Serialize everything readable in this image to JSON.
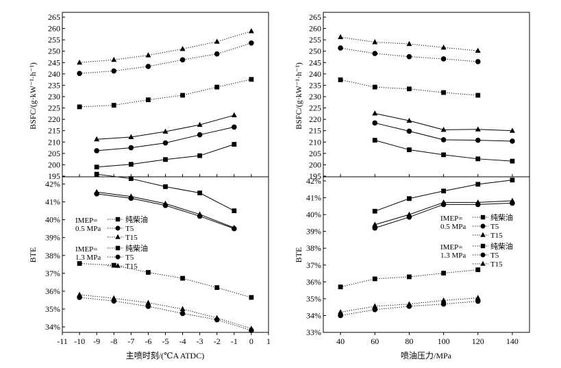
{
  "chart_data": [
    {
      "type": "line",
      "panel": "left-top",
      "xlabel": "主喷时刻/(℃A ATDC)",
      "ylabel": "BSFC/(g·kW⁻¹·h⁻¹)",
      "xlim": [
        -11,
        1
      ],
      "ylim": [
        195,
        265
      ],
      "xticks": [
        -11,
        -10,
        -9,
        -8,
        -7,
        -6,
        -5,
        -4,
        -3,
        -2,
        -1,
        0,
        1
      ],
      "yticks": [
        195,
        200,
        205,
        210,
        215,
        220,
        225,
        230,
        235,
        240,
        245,
        250,
        255,
        260,
        265
      ],
      "series": [
        {
          "name": "纯柴油",
          "load": "0.5 MPa",
          "marker": "square",
          "style": "solid",
          "x": [
            -9,
            -7,
            -5,
            -3,
            -1
          ],
          "y": [
            199,
            200.2,
            202.3,
            204,
            209
          ]
        },
        {
          "name": "T5",
          "load": "0.5 MPa",
          "marker": "circle",
          "style": "solid",
          "x": [
            -9,
            -7,
            -5,
            -3,
            -1
          ],
          "y": [
            206.2,
            207.5,
            209.6,
            213.2,
            216.6
          ]
        },
        {
          "name": "T15",
          "load": "0.5 MPa",
          "marker": "triangle",
          "style": "solid",
          "x": [
            -9,
            -7,
            -5,
            -3,
            -1
          ],
          "y": [
            211.2,
            212.2,
            214.6,
            217.6,
            221.8
          ]
        },
        {
          "name": "纯柴油",
          "load": "1.3 MPa",
          "marker": "square",
          "style": "dotted",
          "x": [
            -10,
            -8,
            -6,
            -4,
            -2,
            0
          ],
          "y": [
            225.5,
            226.2,
            228.6,
            230.6,
            234.2,
            237.6
          ]
        },
        {
          "name": "T5",
          "load": "1.3 MPa",
          "marker": "circle",
          "style": "dotted",
          "x": [
            -10,
            -8,
            -6,
            -4,
            -2,
            0
          ],
          "y": [
            240.2,
            241.3,
            243.3,
            246.2,
            248.8,
            253.6
          ]
        },
        {
          "name": "T15",
          "load": "1.3 MPa",
          "marker": "triangle",
          "style": "dotted",
          "x": [
            -10,
            -8,
            -6,
            -4,
            -2,
            0
          ],
          "y": [
            245,
            246.2,
            248.2,
            251,
            254.2,
            258.8
          ]
        }
      ]
    },
    {
      "type": "line",
      "panel": "left-bottom",
      "xlabel": "主喷时刻/(℃A ATDC)",
      "ylabel": "BTE",
      "xlim": [
        -11,
        1
      ],
      "ylim": [
        33.6,
        42.3
      ],
      "yticks": [
        "34%",
        "35%",
        "36%",
        "37%",
        "38%",
        "39%",
        "40%",
        "41%",
        "42%"
      ],
      "legend": {
        "load1": "IMEP=\n0.5 MPa",
        "load2": "IMEP=\n1.3 MPa",
        "entries": [
          "纯柴油",
          "T5",
          "T15",
          "纯柴油",
          "T5",
          "T15"
        ]
      },
      "series": [
        {
          "name": "纯柴油",
          "load": "0.5 MPa",
          "marker": "square",
          "style": "solid",
          "x": [
            -9,
            -7,
            -5,
            -3,
            -1
          ],
          "y": [
            42.55,
            42.3,
            41.85,
            41.5,
            40.5
          ]
        },
        {
          "name": "T5",
          "load": "0.5 MPa",
          "marker": "circle",
          "style": "solid",
          "x": [
            -9,
            -7,
            -5,
            -3,
            -1
          ],
          "y": [
            41.45,
            41.2,
            40.8,
            40.2,
            39.5
          ]
        },
        {
          "name": "T15",
          "load": "0.5 MPa",
          "marker": "triangle",
          "style": "solid",
          "x": [
            -9,
            -7,
            -5,
            -3,
            -1
          ],
          "y": [
            41.55,
            41.3,
            40.9,
            40.3,
            39.55
          ]
        },
        {
          "name": "纯柴油",
          "load": "1.3 MPa",
          "marker": "square",
          "style": "dotted",
          "x": [
            -10,
            -8,
            -6,
            -4,
            -2,
            0
          ],
          "y": [
            37.55,
            37.45,
            37.05,
            36.72,
            36.2,
            35.65
          ]
        },
        {
          "name": "T5",
          "load": "1.3 MPa",
          "marker": "circle",
          "style": "dotted",
          "x": [
            -10,
            -8,
            -6,
            -4,
            -2,
            0
          ],
          "y": [
            35.65,
            35.45,
            35.15,
            34.75,
            34.4,
            33.8
          ]
        },
        {
          "name": "T15",
          "load": "1.3 MPa",
          "marker": "triangle",
          "style": "dotted",
          "x": [
            -10,
            -8,
            -6,
            -4,
            -2,
            0
          ],
          "y": [
            35.8,
            35.6,
            35.35,
            35.0,
            34.5,
            33.9
          ]
        }
      ]
    },
    {
      "type": "line",
      "panel": "right-top",
      "xlabel": "喷油压力/MPa",
      "ylabel": "BSFC/(g·kW⁻¹·h⁻¹)",
      "xlim": [
        30,
        150
      ],
      "ylim": [
        195,
        265
      ],
      "xticks": [
        40,
        60,
        80,
        100,
        120,
        140
      ],
      "yticks": [
        195,
        200,
        205,
        210,
        215,
        220,
        225,
        230,
        235,
        240,
        245,
        250,
        255,
        260,
        265
      ],
      "series": [
        {
          "name": "纯柴油",
          "load": "0.5 MPa",
          "marker": "square",
          "style": "solid",
          "x": [
            60,
            80,
            100,
            120,
            140
          ],
          "y": [
            210.8,
            206.6,
            204.4,
            202.6,
            201.6
          ]
        },
        {
          "name": "T5",
          "load": "0.5 MPa",
          "marker": "circle",
          "style": "solid",
          "x": [
            60,
            80,
            100,
            120,
            140
          ],
          "y": [
            218.4,
            214.8,
            211,
            210.8,
            210.4
          ]
        },
        {
          "name": "T15",
          "load": "0.5 MPa",
          "marker": "triangle",
          "style": "solid",
          "x": [
            60,
            80,
            100,
            120,
            140
          ],
          "y": [
            222.6,
            219.4,
            215.4,
            215.6,
            215
          ]
        },
        {
          "name": "纯柴油",
          "load": "1.3 MPa",
          "marker": "square",
          "style": "dotted",
          "x": [
            40,
            60,
            80,
            100,
            120
          ],
          "y": [
            237.4,
            234.2,
            233.4,
            231.8,
            230.6
          ]
        },
        {
          "name": "T5",
          "load": "1.3 MPa",
          "marker": "circle",
          "style": "dotted",
          "x": [
            40,
            60,
            80,
            100,
            120
          ],
          "y": [
            251.4,
            249,
            247.6,
            246.6,
            245.4
          ]
        },
        {
          "name": "T15",
          "load": "1.3 MPa",
          "marker": "triangle",
          "style": "dotted",
          "x": [
            40,
            60,
            80,
            100,
            120
          ],
          "y": [
            256.2,
            254,
            253.2,
            251.6,
            250.2
          ]
        }
      ]
    },
    {
      "type": "line",
      "panel": "right-bottom",
      "xlabel": "喷油压力/MPa",
      "ylabel": "BTE",
      "xlim": [
        30,
        150
      ],
      "ylim": [
        33,
        42
      ],
      "yticks": [
        "33%",
        "34%",
        "35%",
        "36%",
        "37%",
        "38%",
        "39%",
        "40%",
        "41%",
        "42%"
      ],
      "legend": {
        "load1": "IMEP=\n0.5 MPa",
        "load2": "IMEP=\n1.3 MPa",
        "entries": [
          "纯柴油",
          "T5",
          "T15",
          "纯柴油",
          "T5",
          "T15"
        ]
      },
      "series": [
        {
          "name": "纯柴油",
          "load": "0.5 MPa",
          "marker": "square",
          "style": "solid",
          "x": [
            60,
            80,
            100,
            120,
            140
          ],
          "y": [
            40.2,
            40.95,
            41.4,
            41.8,
            42.05
          ]
        },
        {
          "name": "T5",
          "load": "0.5 MPa",
          "marker": "circle",
          "style": "solid",
          "x": [
            60,
            80,
            100,
            120,
            140
          ],
          "y": [
            39.2,
            39.85,
            40.6,
            40.6,
            40.68
          ]
        },
        {
          "name": "T15",
          "load": "0.5 MPa",
          "marker": "triangle",
          "style": "solid",
          "x": [
            60,
            80,
            100,
            120,
            140
          ],
          "y": [
            39.4,
            40.0,
            40.72,
            40.72,
            40.82
          ]
        },
        {
          "name": "纯柴油",
          "load": "1.3 MPa",
          "marker": "square",
          "style": "dotted",
          "x": [
            40,
            60,
            80,
            100,
            120
          ],
          "y": [
            35.7,
            36.18,
            36.3,
            36.52,
            36.72
          ]
        },
        {
          "name": "T5",
          "load": "1.3 MPa",
          "marker": "circle",
          "style": "dotted",
          "x": [
            40,
            60,
            80,
            100,
            120
          ],
          "y": [
            34.0,
            34.35,
            34.55,
            34.68,
            34.85
          ]
        },
        {
          "name": "T15",
          "load": "1.3 MPa",
          "marker": "triangle",
          "style": "dotted",
          "x": [
            40,
            60,
            80,
            100,
            120
          ],
          "y": [
            34.2,
            34.55,
            34.68,
            34.9,
            35.05
          ]
        }
      ]
    }
  ]
}
